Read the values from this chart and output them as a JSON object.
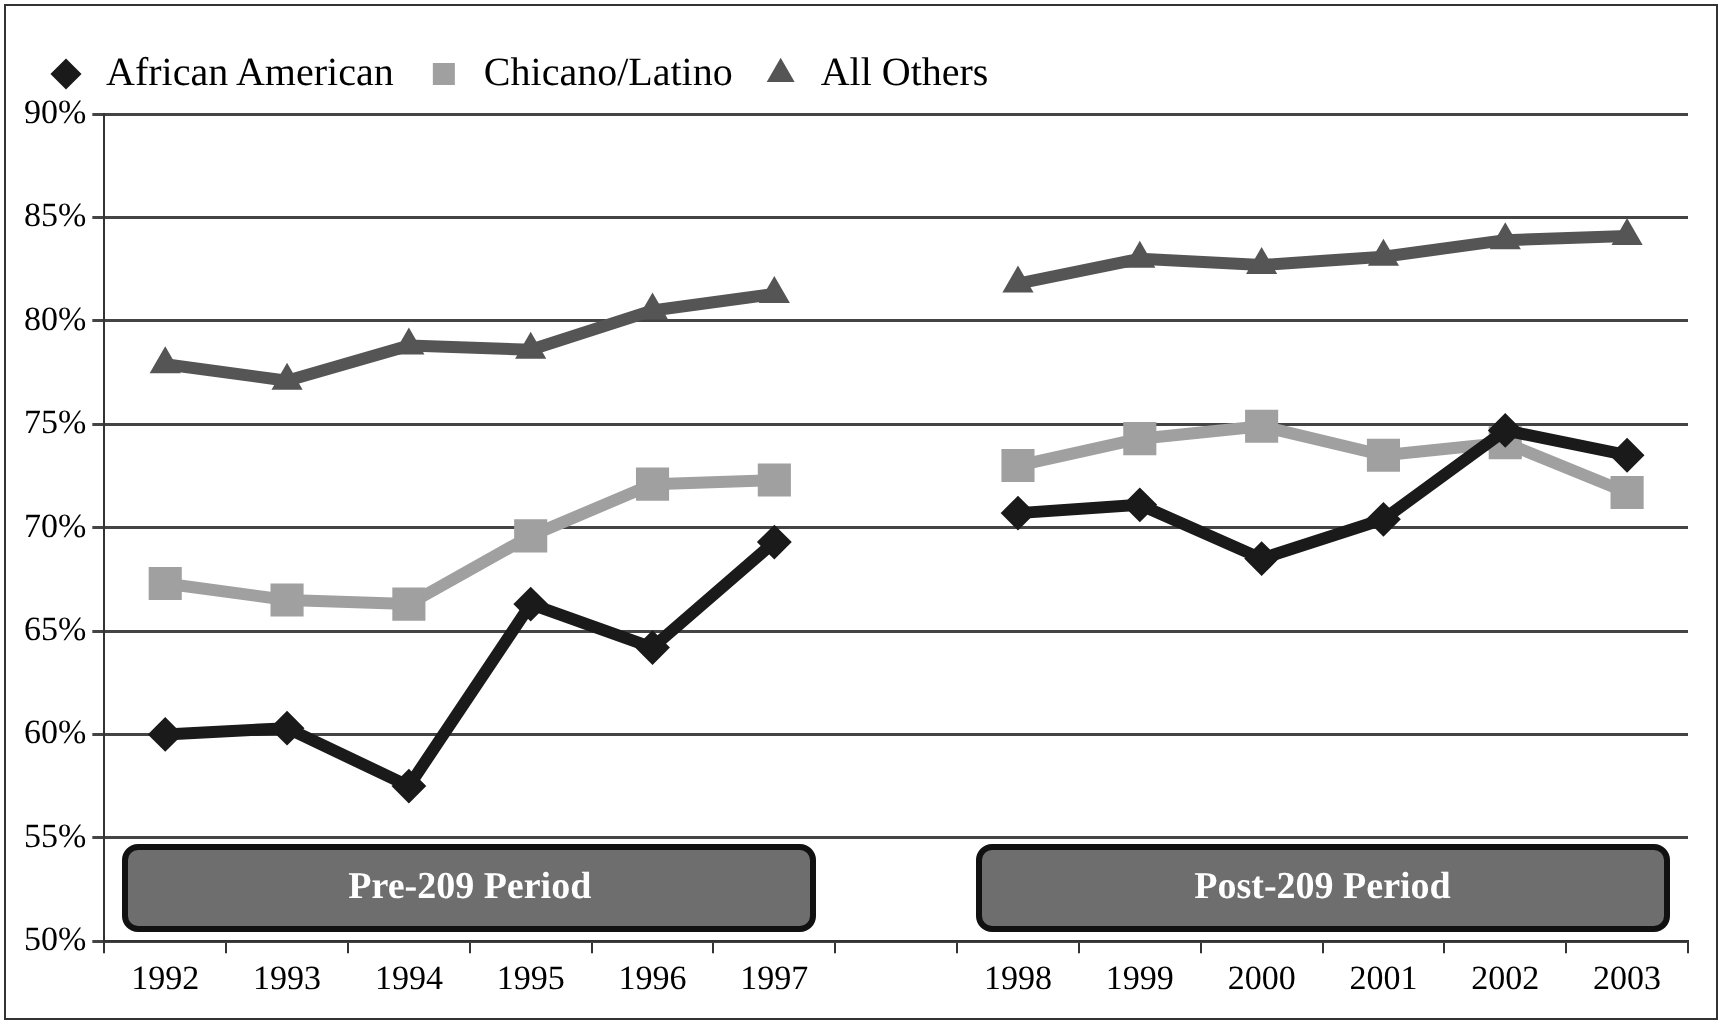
{
  "chart_data": {
    "type": "line",
    "categories": [
      "1992",
      "1993",
      "1994",
      "1995",
      "1996",
      "1997",
      null,
      "1998",
      "1999",
      "2000",
      "2001",
      "2002",
      "2003"
    ],
    "series": [
      {
        "name": "African American",
        "color": "#1a1a1a",
        "marker": "diamond",
        "values": [
          60.0,
          60.3,
          57.5,
          66.3,
          64.2,
          69.3,
          null,
          70.7,
          71.1,
          68.5,
          70.4,
          74.7,
          73.5
        ]
      },
      {
        "name": "Chicano/Latino",
        "color": "#a0a0a0",
        "marker": "square",
        "values": [
          67.3,
          66.5,
          66.3,
          69.6,
          72.1,
          72.3,
          null,
          73.0,
          74.3,
          74.9,
          73.5,
          74.1,
          71.7
        ]
      },
      {
        "name": "All Others",
        "color": "#555555",
        "marker": "triangle",
        "values": [
          77.9,
          77.1,
          78.8,
          78.6,
          80.5,
          81.3,
          null,
          81.8,
          83.0,
          82.7,
          83.1,
          83.9,
          84.1
        ]
      }
    ],
    "ylim": [
      50,
      90
    ],
    "yticks": [
      {
        "value": 50,
        "label": "50%"
      },
      {
        "value": 55,
        "label": "55%"
      },
      {
        "value": 60,
        "label": "60%"
      },
      {
        "value": 65,
        "label": "65%"
      },
      {
        "value": 70,
        "label": "70%"
      },
      {
        "value": 75,
        "label": "75%"
      },
      {
        "value": 80,
        "label": "80%"
      },
      {
        "value": 85,
        "label": "85%"
      },
      {
        "value": 90,
        "label": "90%"
      }
    ],
    "grid": "y",
    "legend": "top",
    "annotations": [
      "Pre-209 Period",
      "Post-209 Period"
    ]
  }
}
